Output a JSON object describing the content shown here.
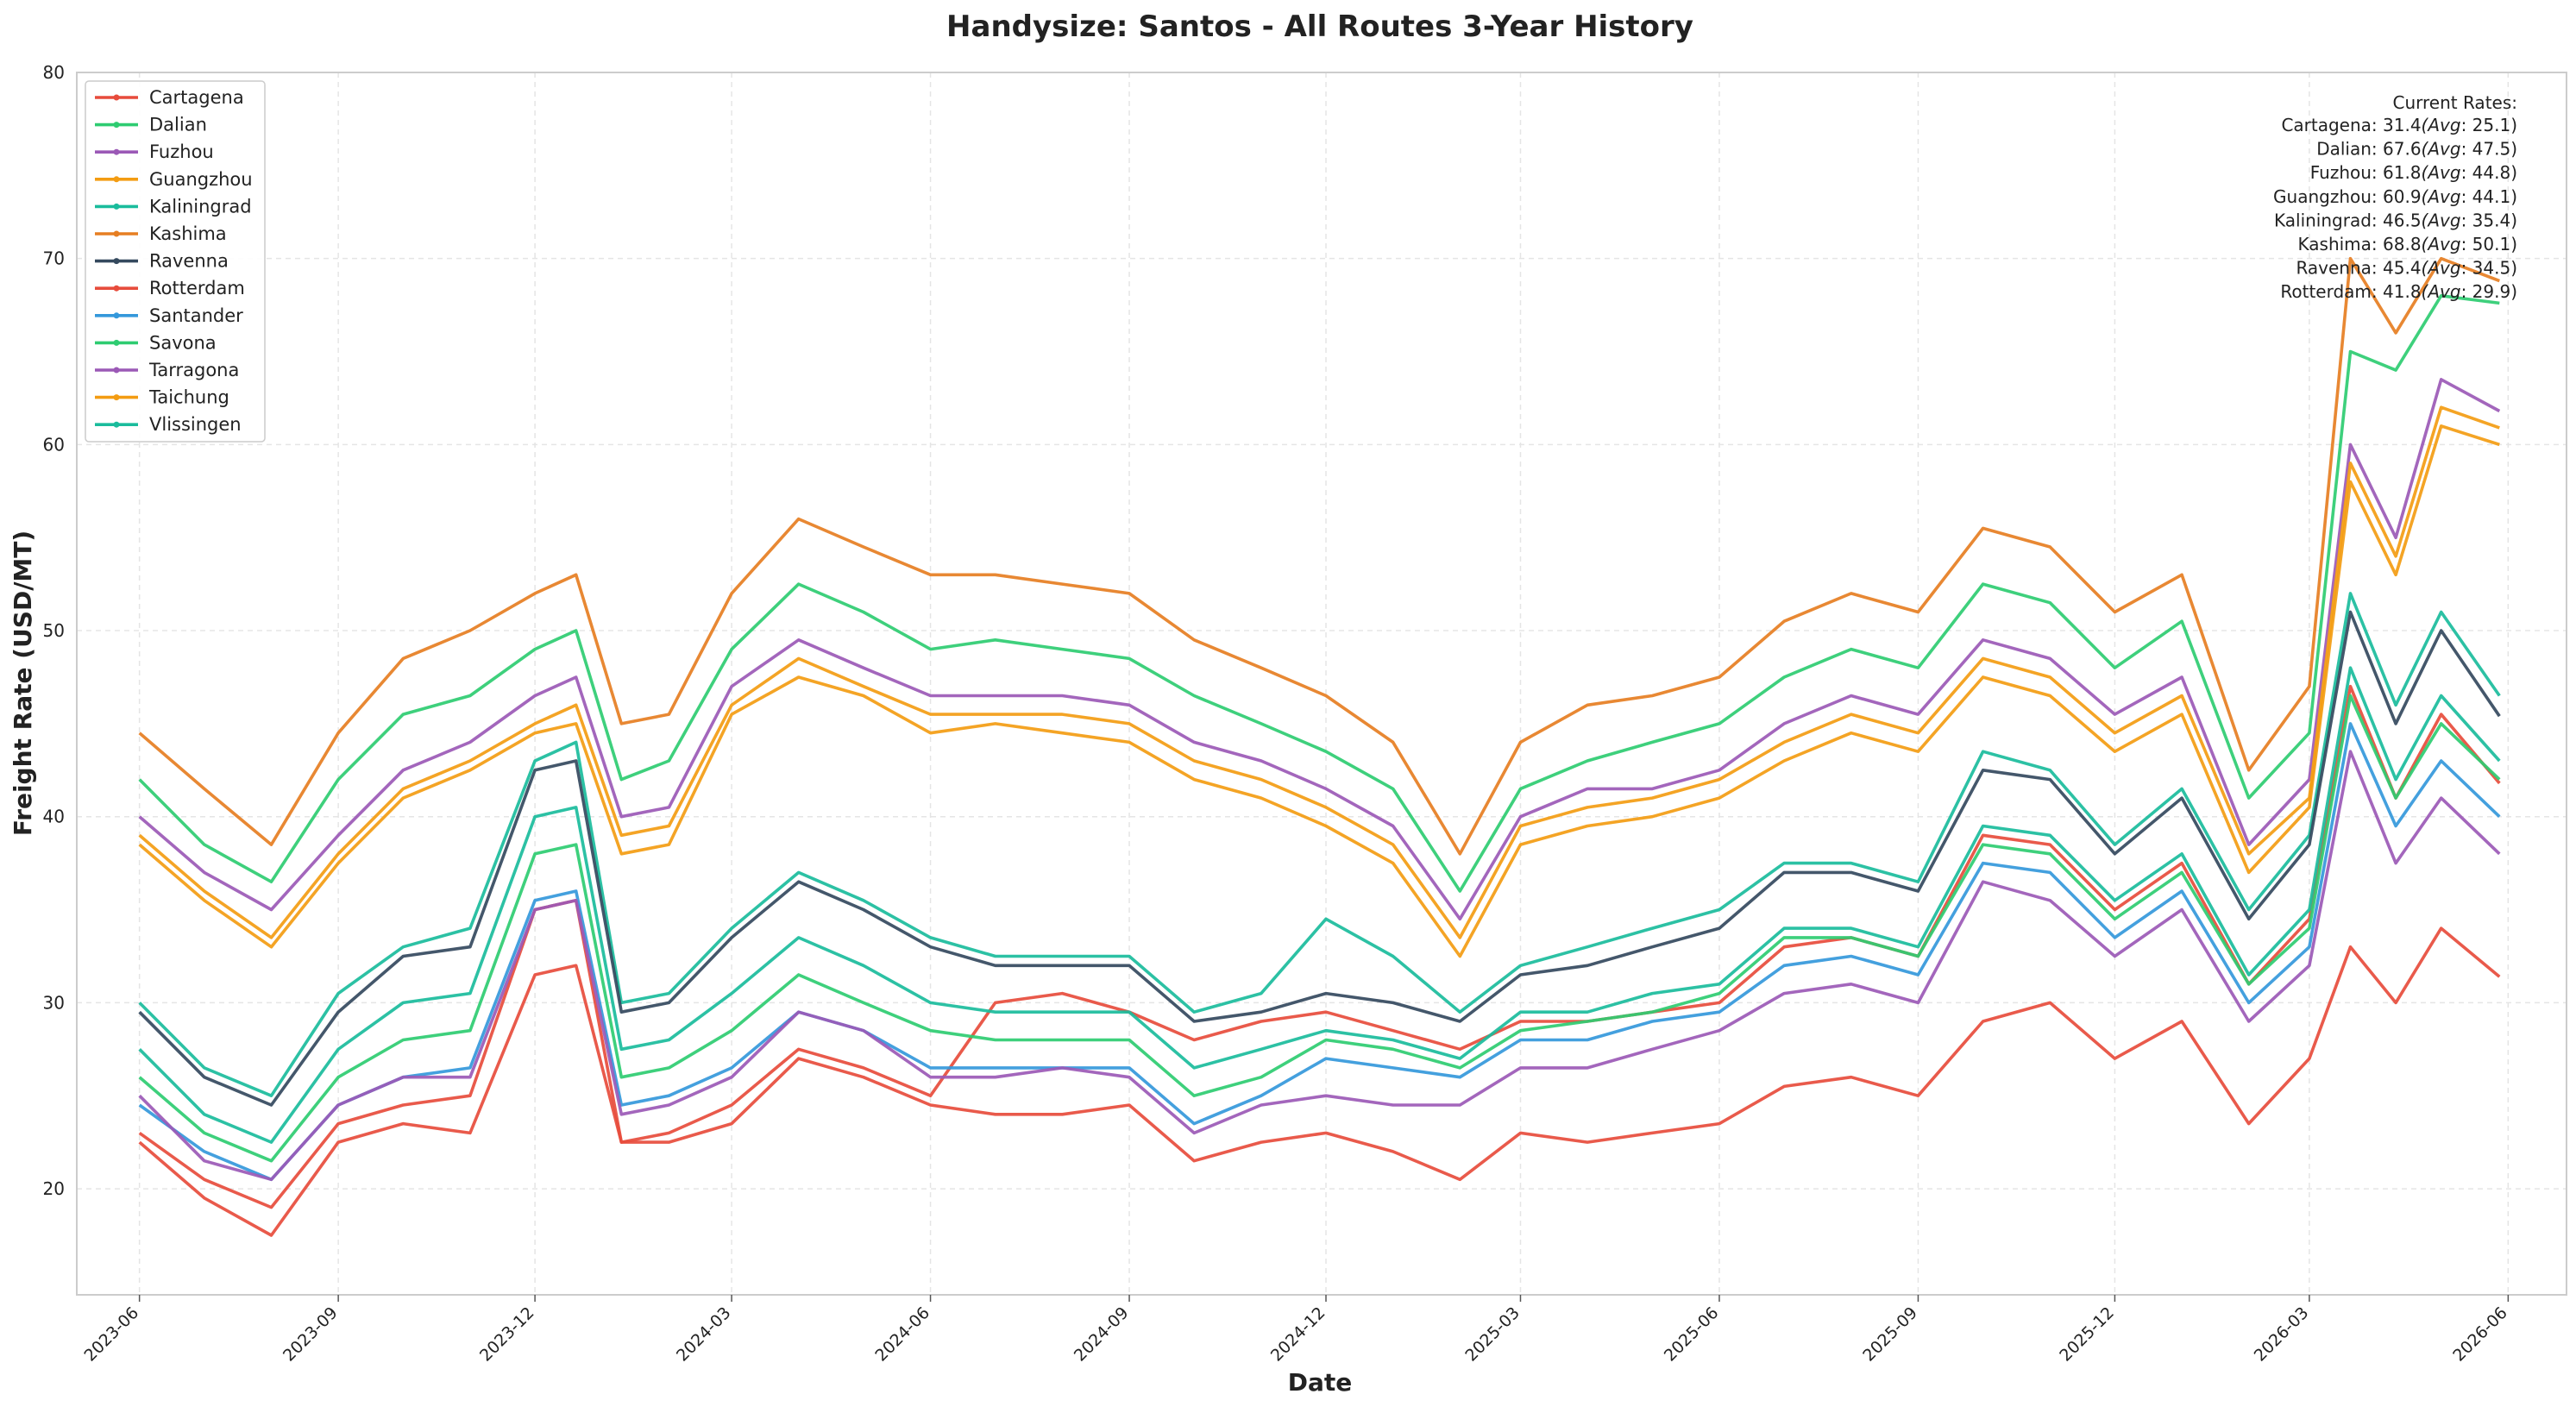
{
  "chart_data": {
    "type": "line",
    "title": "Handysize: Santos - All Routes 3-Year History",
    "xlabel": "Date",
    "ylabel": "Freight Rate (USD/MT)",
    "ylim": [
      14.3,
      80
    ],
    "xlim": [
      "2023-05-03",
      "2026-06-28"
    ],
    "y_ticks": [
      "20",
      "30",
      "40",
      "50",
      "60",
      "70",
      "80"
    ],
    "x_ticks": [
      {
        "date": "2023-06-01",
        "label": "2023-06"
      },
      {
        "date": "2023-09-01",
        "label": "2023-09"
      },
      {
        "date": "2023-12-01",
        "label": "2023-12"
      },
      {
        "date": "2024-03-01",
        "label": "2024-03"
      },
      {
        "date": "2024-06-01",
        "label": "2024-06"
      },
      {
        "date": "2024-09-01",
        "label": "2024-09"
      },
      {
        "date": "2024-12-01",
        "label": "2024-12"
      },
      {
        "date": "2025-03-01",
        "label": "2025-03"
      },
      {
        "date": "2025-06-01",
        "label": "2025-06"
      },
      {
        "date": "2025-09-01",
        "label": "2025-09"
      },
      {
        "date": "2025-12-01",
        "label": "2025-12"
      },
      {
        "date": "2026-03-01",
        "label": "2026-03"
      },
      {
        "date": "2026-06-01",
        "label": "2026-06"
      }
    ],
    "grid": true,
    "legend_position": "top-left",
    "x": [
      "2023-06-01",
      "2023-07-01",
      "2023-08-01",
      "2023-09-01",
      "2023-10-01",
      "2023-11-01",
      "2023-12-01",
      "2023-12-20",
      "2024-01-10",
      "2024-02-01",
      "2024-03-01",
      "2024-04-01",
      "2024-05-01",
      "2024-06-01",
      "2024-07-01",
      "2024-08-01",
      "2024-09-01",
      "2024-10-01",
      "2024-11-01",
      "2024-12-01",
      "2025-01-01",
      "2025-02-01",
      "2025-03-01",
      "2025-04-01",
      "2025-05-01",
      "2025-06-01",
      "2025-07-01",
      "2025-08-01",
      "2025-09-01",
      "2025-10-01",
      "2025-11-01",
      "2025-12-01",
      "2026-01-01",
      "2026-02-01",
      "2026-03-01",
      "2026-03-20",
      "2026-04-10",
      "2026-05-01",
      "2026-05-28"
    ],
    "series": [
      {
        "name": "Cartagena",
        "color": "#e74c3c",
        "values": [
          22.5,
          19.5,
          17.5,
          22.5,
          23.5,
          23.0,
          31.5,
          32.0,
          22.5,
          22.5,
          23.5,
          27.0,
          26.0,
          24.5,
          24.0,
          24.0,
          24.5,
          21.5,
          22.5,
          23.0,
          22.0,
          20.5,
          23.0,
          22.5,
          23.0,
          23.5,
          25.5,
          26.0,
          25.0,
          29.0,
          30.0,
          27.0,
          29.0,
          23.5,
          27.0,
          33.0,
          30.0,
          34.0,
          31.4
        ]
      },
      {
        "name": "Dalian",
        "color": "#2ecc71",
        "values": [
          42.0,
          38.5,
          36.5,
          42.0,
          45.5,
          46.5,
          49.0,
          50.0,
          42.0,
          43.0,
          49.0,
          52.5,
          51.0,
          49.0,
          49.5,
          49.0,
          48.5,
          46.5,
          45.0,
          43.5,
          41.5,
          36.0,
          41.5,
          43.0,
          44.0,
          45.0,
          47.5,
          49.0,
          48.0,
          52.5,
          51.5,
          48.0,
          50.5,
          41.0,
          44.5,
          65.0,
          64.0,
          68.0,
          67.6
        ]
      },
      {
        "name": "Fuzhou",
        "color": "#9b59b6",
        "values": [
          40.0,
          37.0,
          35.0,
          39.0,
          42.5,
          44.0,
          46.5,
          47.5,
          40.0,
          40.5,
          47.0,
          49.5,
          48.0,
          46.5,
          46.5,
          46.5,
          46.0,
          44.0,
          43.0,
          41.5,
          39.5,
          34.5,
          40.0,
          41.5,
          41.5,
          42.5,
          45.0,
          46.5,
          45.5,
          49.5,
          48.5,
          45.5,
          47.5,
          38.5,
          42.0,
          60.0,
          55.0,
          63.5,
          61.8
        ]
      },
      {
        "name": "Guangzhou",
        "color": "#f39c12",
        "values": [
          39.0,
          36.0,
          33.5,
          38.0,
          41.5,
          43.0,
          45.0,
          46.0,
          39.0,
          39.5,
          46.0,
          48.5,
          47.0,
          45.5,
          45.5,
          45.5,
          45.0,
          43.0,
          42.0,
          40.5,
          38.5,
          33.5,
          39.5,
          40.5,
          41.0,
          42.0,
          44.0,
          45.5,
          44.5,
          48.5,
          47.5,
          44.5,
          46.5,
          38.0,
          41.0,
          59.0,
          54.0,
          62.0,
          60.9
        ]
      },
      {
        "name": "Kaliningrad",
        "color": "#1abc9c",
        "values": [
          30.0,
          26.5,
          25.0,
          30.5,
          33.0,
          34.0,
          43.0,
          44.0,
          30.0,
          30.5,
          34.0,
          37.0,
          35.5,
          33.5,
          32.5,
          32.5,
          32.5,
          29.5,
          30.5,
          34.5,
          32.5,
          29.5,
          32.0,
          33.0,
          34.0,
          35.0,
          37.5,
          37.5,
          36.5,
          43.5,
          42.5,
          38.5,
          41.5,
          35.0,
          39.0,
          52.0,
          46.0,
          51.0,
          46.5
        ]
      },
      {
        "name": "Kashima",
        "color": "#e67e22",
        "values": [
          44.5,
          41.5,
          38.5,
          44.5,
          48.5,
          50.0,
          52.0,
          53.0,
          45.0,
          45.5,
          52.0,
          56.0,
          54.5,
          53.0,
          53.0,
          52.5,
          52.0,
          49.5,
          48.0,
          46.5,
          44.0,
          38.0,
          44.0,
          46.0,
          46.5,
          47.5,
          50.5,
          52.0,
          51.0,
          55.5,
          54.5,
          51.0,
          53.0,
          42.5,
          47.0,
          70.0,
          66.0,
          70.0,
          68.8
        ]
      },
      {
        "name": "Ravenna",
        "color": "#34495e",
        "values": [
          29.5,
          26.0,
          24.5,
          29.5,
          32.5,
          33.0,
          42.5,
          43.0,
          29.5,
          30.0,
          33.5,
          36.5,
          35.0,
          33.0,
          32.0,
          32.0,
          32.0,
          29.0,
          29.5,
          30.5,
          30.0,
          29.0,
          31.5,
          32.0,
          33.0,
          34.0,
          37.0,
          37.0,
          36.0,
          42.5,
          42.0,
          38.0,
          41.0,
          34.5,
          38.5,
          51.0,
          45.0,
          50.0,
          45.4
        ]
      },
      {
        "name": "Rotterdam",
        "color": "#e74c3c",
        "values": [
          23.0,
          20.5,
          19.0,
          23.5,
          24.5,
          25.0,
          35.0,
          35.5,
          22.5,
          23.0,
          24.5,
          27.5,
          26.5,
          25.0,
          30.0,
          30.5,
          29.5,
          28.0,
          29.0,
          29.5,
          28.5,
          27.5,
          29.0,
          29.0,
          29.5,
          30.0,
          33.0,
          33.5,
          32.5,
          39.0,
          38.5,
          35.0,
          37.5,
          31.0,
          34.5,
          47.0,
          41.0,
          45.5,
          41.8
        ]
      },
      {
        "name": "Santander",
        "color": "#3498db",
        "values": [
          24.5,
          22.0,
          20.5,
          24.5,
          26.0,
          26.5,
          35.5,
          36.0,
          24.5,
          25.0,
          26.5,
          29.5,
          28.5,
          26.5,
          26.5,
          26.5,
          26.5,
          23.5,
          25.0,
          27.0,
          26.5,
          26.0,
          28.0,
          28.0,
          29.0,
          29.5,
          32.0,
          32.5,
          31.5,
          37.5,
          37.0,
          33.5,
          36.0,
          30.0,
          33.0,
          45.0,
          39.5,
          43.0,
          40.0
        ]
      },
      {
        "name": "Savona",
        "color": "#2ecc71",
        "values": [
          26.0,
          23.0,
          21.5,
          26.0,
          28.0,
          28.5,
          38.0,
          38.5,
          26.0,
          26.5,
          28.5,
          31.5,
          30.0,
          28.5,
          28.0,
          28.0,
          28.0,
          25.0,
          26.0,
          28.0,
          27.5,
          26.5,
          28.5,
          29.0,
          29.5,
          30.5,
          33.5,
          33.5,
          32.5,
          38.5,
          38.0,
          34.5,
          37.0,
          31.0,
          34.0,
          46.5,
          41.0,
          45.0,
          42.0
        ]
      },
      {
        "name": "Tarragona",
        "color": "#9b59b6",
        "values": [
          25.0,
          21.5,
          20.5,
          24.5,
          26.0,
          26.0,
          35.0,
          35.5,
          24.0,
          24.5,
          26.0,
          29.5,
          28.5,
          26.0,
          26.0,
          26.5,
          26.0,
          23.0,
          24.5,
          25.0,
          24.5,
          24.5,
          26.5,
          26.5,
          27.5,
          28.5,
          30.5,
          31.0,
          30.0,
          36.5,
          35.5,
          32.5,
          35.0,
          29.0,
          32.0,
          43.5,
          37.5,
          41.0,
          38.0
        ]
      },
      {
        "name": "Taichung",
        "color": "#f39c12",
        "values": [
          38.5,
          35.5,
          33.0,
          37.5,
          41.0,
          42.5,
          44.5,
          45.0,
          38.0,
          38.5,
          45.5,
          47.5,
          46.5,
          44.5,
          45.0,
          44.5,
          44.0,
          42.0,
          41.0,
          39.5,
          37.5,
          32.5,
          38.5,
          39.5,
          40.0,
          41.0,
          43.0,
          44.5,
          43.5,
          47.5,
          46.5,
          43.5,
          45.5,
          37.0,
          40.5,
          58.0,
          53.0,
          61.0,
          60.0
        ]
      },
      {
        "name": "Vlissingen",
        "color": "#1abc9c",
        "values": [
          27.5,
          24.0,
          22.5,
          27.5,
          30.0,
          30.5,
          40.0,
          40.5,
          27.5,
          28.0,
          30.5,
          33.5,
          32.0,
          30.0,
          29.5,
          29.5,
          29.5,
          26.5,
          27.5,
          28.5,
          28.0,
          27.0,
          29.5,
          29.5,
          30.5,
          31.0,
          34.0,
          34.0,
          33.0,
          39.5,
          39.0,
          35.5,
          38.0,
          31.5,
          35.0,
          48.0,
          42.0,
          46.5,
          43.0
        ]
      }
    ],
    "current_rates_title": "Current Rates:",
    "current_rates": [
      {
        "route": "Cartagena",
        "current": "31.4",
        "avg": "25.1"
      },
      {
        "route": "Dalian",
        "current": "67.6",
        "avg": "47.5"
      },
      {
        "route": "Fuzhou",
        "current": "61.8",
        "avg": "44.8"
      },
      {
        "route": "Guangzhou",
        "current": "60.9",
        "avg": "44.1"
      },
      {
        "route": "Kaliningrad",
        "current": "46.5",
        "avg": "35.4"
      },
      {
        "route": "Kashima",
        "current": "68.8",
        "avg": "50.1"
      },
      {
        "route": "Ravenna",
        "current": "45.4",
        "avg": "34.5"
      },
      {
        "route": "Rotterdam",
        "current": "41.8",
        "avg": "29.9"
      }
    ]
  }
}
